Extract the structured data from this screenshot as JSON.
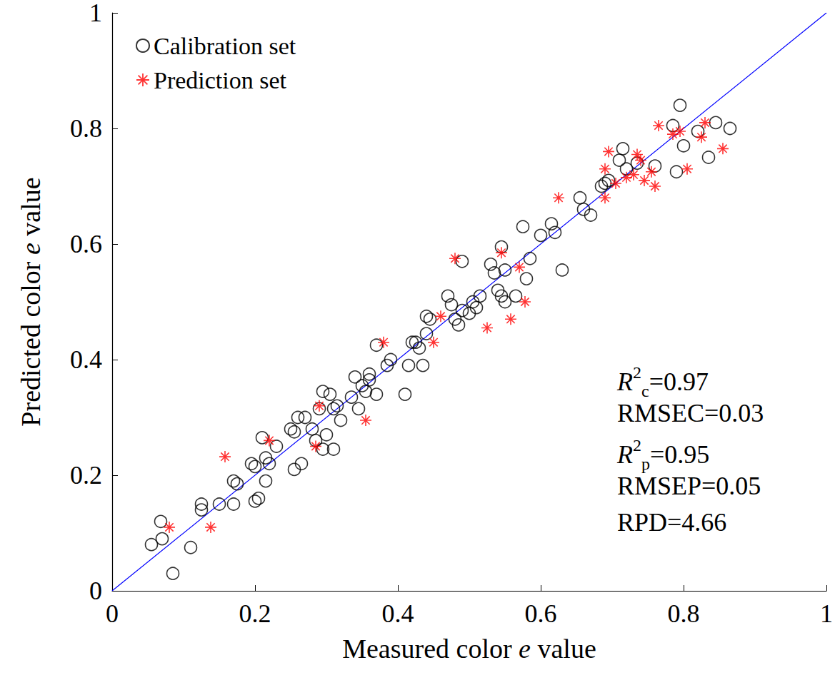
{
  "chart_data": {
    "type": "scatter",
    "x_label": "Measured color e value",
    "y_label": "Predicted color e value",
    "xlim": [
      0,
      1
    ],
    "ylim": [
      0,
      1
    ],
    "xticks": [
      0,
      0.2,
      0.4,
      0.6,
      0.8,
      1
    ],
    "yticks": [
      0,
      0.2,
      0.4,
      0.6,
      0.8,
      1
    ],
    "grid": false,
    "legend": "upper left",
    "series": [
      {
        "name": "Calibration set",
        "color": "#000000",
        "marker": "circle-open",
        "x": [
          0.055,
          0.068,
          0.07,
          0.085,
          0.11,
          0.125,
          0.125,
          0.15,
          0.17,
          0.17,
          0.175,
          0.195,
          0.2,
          0.205,
          0.2,
          0.21,
          0.215,
          0.215,
          0.22,
          0.23,
          0.25,
          0.255,
          0.255,
          0.26,
          0.265,
          0.27,
          0.28,
          0.285,
          0.29,
          0.295,
          0.295,
          0.3,
          0.305,
          0.31,
          0.31,
          0.315,
          0.32,
          0.335,
          0.34,
          0.345,
          0.35,
          0.355,
          0.36,
          0.36,
          0.37,
          0.37,
          0.385,
          0.39,
          0.41,
          0.415,
          0.42,
          0.425,
          0.43,
          0.435,
          0.44,
          0.44,
          0.445,
          0.47,
          0.475,
          0.48,
          0.485,
          0.49,
          0.49,
          0.5,
          0.505,
          0.51,
          0.515,
          0.53,
          0.535,
          0.54,
          0.545,
          0.545,
          0.55,
          0.55,
          0.565,
          0.575,
          0.58,
          0.585,
          0.6,
          0.615,
          0.62,
          0.63,
          0.655,
          0.66,
          0.67,
          0.685,
          0.69,
          0.695,
          0.71,
          0.715,
          0.72,
          0.735,
          0.76,
          0.785,
          0.79,
          0.795,
          0.8,
          0.82,
          0.835,
          0.845,
          0.865
        ],
        "values": [
          0.08,
          0.12,
          0.09,
          0.03,
          0.075,
          0.15,
          0.14,
          0.15,
          0.19,
          0.15,
          0.185,
          0.22,
          0.155,
          0.16,
          0.215,
          0.265,
          0.23,
          0.19,
          0.22,
          0.25,
          0.28,
          0.275,
          0.21,
          0.3,
          0.22,
          0.3,
          0.28,
          0.26,
          0.315,
          0.245,
          0.345,
          0.27,
          0.34,
          0.315,
          0.245,
          0.32,
          0.295,
          0.335,
          0.37,
          0.315,
          0.355,
          0.345,
          0.365,
          0.375,
          0.34,
          0.425,
          0.39,
          0.4,
          0.34,
          0.39,
          0.43,
          0.43,
          0.42,
          0.39,
          0.445,
          0.475,
          0.47,
          0.51,
          0.495,
          0.47,
          0.46,
          0.485,
          0.57,
          0.48,
          0.5,
          0.49,
          0.51,
          0.565,
          0.55,
          0.52,
          0.595,
          0.51,
          0.5,
          0.555,
          0.51,
          0.63,
          0.54,
          0.575,
          0.615,
          0.635,
          0.62,
          0.555,
          0.68,
          0.66,
          0.65,
          0.7,
          0.705,
          0.71,
          0.745,
          0.765,
          0.73,
          0.74,
          0.735,
          0.805,
          0.725,
          0.84,
          0.77,
          0.795,
          0.75,
          0.81,
          0.8
        ]
      },
      {
        "name": "Prediction set",
        "color": "#ff0000",
        "marker": "asterisk",
        "x": [
          0.08,
          0.138,
          0.158,
          0.22,
          0.285,
          0.29,
          0.355,
          0.38,
          0.45,
          0.46,
          0.48,
          0.525,
          0.545,
          0.558,
          0.57,
          0.578,
          0.625,
          0.69,
          0.69,
          0.695,
          0.705,
          0.72,
          0.73,
          0.735,
          0.74,
          0.745,
          0.755,
          0.76,
          0.765,
          0.785,
          0.795,
          0.805,
          0.825,
          0.83,
          0.855
        ],
        "values": [
          0.11,
          0.11,
          0.232,
          0.26,
          0.25,
          0.32,
          0.295,
          0.43,
          0.43,
          0.475,
          0.575,
          0.455,
          0.585,
          0.47,
          0.56,
          0.5,
          0.68,
          0.68,
          0.73,
          0.76,
          0.705,
          0.715,
          0.72,
          0.755,
          0.745,
          0.71,
          0.725,
          0.7,
          0.805,
          0.79,
          0.795,
          0.73,
          0.785,
          0.81,
          0.765
        ]
      }
    ],
    "reference_line": {
      "x": [
        0,
        1
      ],
      "values": [
        0,
        1
      ],
      "color": "#0000ff",
      "line_style": "solid"
    },
    "annotations": [
      {
        "italic": "R",
        "sup": "2",
        "sub": "c",
        "text": "=0.97"
      },
      {
        "text": "RMSEC=0.03"
      },
      {
        "italic": "R",
        "sup": "2",
        "sub": "p",
        "text": "=0.95"
      },
      {
        "text": "RMSEP=0.05"
      },
      {
        "text": "RPD=4.66"
      }
    ]
  }
}
